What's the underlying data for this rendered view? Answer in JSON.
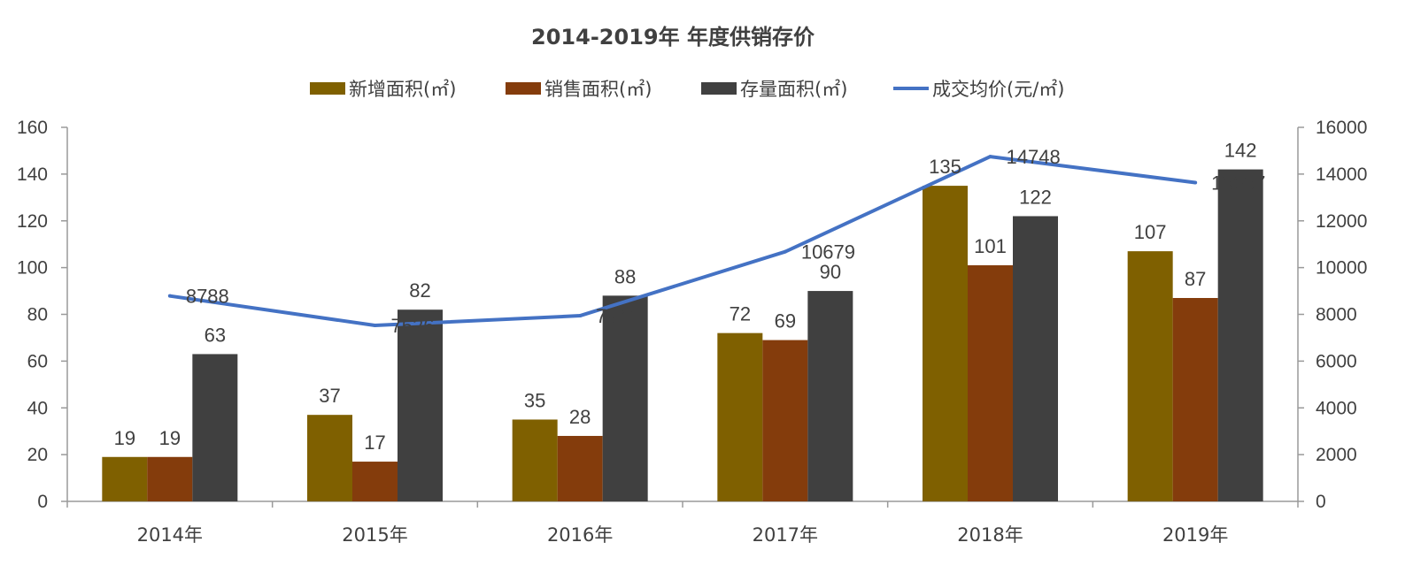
{
  "chart_data": {
    "type": "bar",
    "title": "2014-2019年 年度供销存价",
    "categories": [
      "2014年",
      "2015年",
      "2016年",
      "2017年",
      "2018年",
      "2019年"
    ],
    "series": [
      {
        "name": "新增面积(㎡)",
        "type": "bar",
        "axis": "left",
        "color": "#7f6000",
        "values": [
          19,
          37,
          35,
          72,
          135,
          107
        ]
      },
      {
        "name": "销售面积(㎡)",
        "type": "bar",
        "axis": "left",
        "color": "#843c0c",
        "values": [
          19,
          17,
          28,
          69,
          101,
          87
        ]
      },
      {
        "name": "存量面积(㎡)",
        "type": "bar",
        "axis": "left",
        "color": "#404040",
        "values": [
          63,
          82,
          88,
          90,
          122,
          142
        ]
      },
      {
        "name": "成交均价(元/㎡)",
        "type": "line",
        "axis": "right",
        "color": "#4472c4",
        "values": [
          8788,
          7526,
          7941,
          10679,
          14748,
          13637
        ]
      }
    ],
    "y_left": {
      "min": 0,
      "max": 160,
      "ticks": [
        0,
        20,
        40,
        60,
        80,
        100,
        120,
        140,
        160
      ]
    },
    "y_right": {
      "min": 0,
      "max": 16000,
      "ticks": [
        0,
        2000,
        4000,
        6000,
        8000,
        10000,
        12000,
        14000,
        16000
      ]
    },
    "legend_position": "top",
    "grid": false
  }
}
